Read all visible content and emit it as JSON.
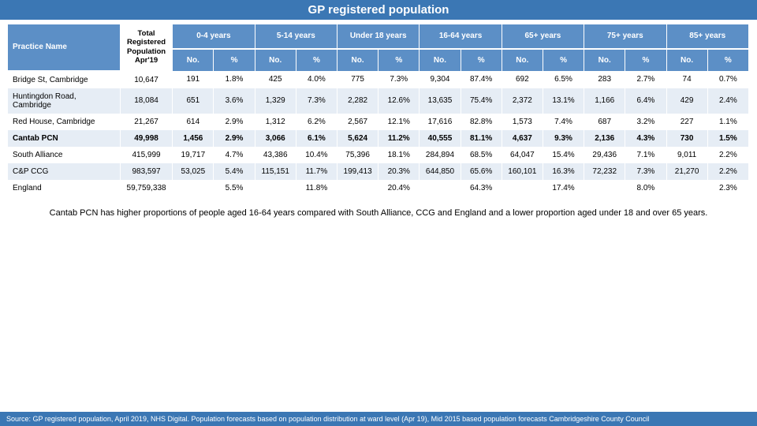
{
  "title": "GP registered population",
  "headers": {
    "practice": "Practice Name",
    "total": "Total Registered Population Apr'19",
    "groups": [
      "0-4 years",
      "5-14 years",
      "Under 18 years",
      "16-64 years",
      "65+ years",
      "75+ years",
      "85+ years"
    ],
    "no": "No.",
    "pct": "%"
  },
  "rows": [
    {
      "name": "Bridge St, Cambridge",
      "total": "10,647",
      "cells": [
        "191",
        "1.8%",
        "425",
        "4.0%",
        "775",
        "7.3%",
        "9,304",
        "87.4%",
        "692",
        "6.5%",
        "283",
        "2.7%",
        "74",
        "0.7%"
      ],
      "bold": false,
      "stripe": "odd"
    },
    {
      "name": "Huntingdon Road, Cambridge",
      "total": "18,084",
      "cells": [
        "651",
        "3.6%",
        "1,329",
        "7.3%",
        "2,282",
        "12.6%",
        "13,635",
        "75.4%",
        "2,372",
        "13.1%",
        "1,166",
        "6.4%",
        "429",
        "2.4%"
      ],
      "bold": false,
      "stripe": "even"
    },
    {
      "name": "Red House, Cambridge",
      "total": "21,267",
      "cells": [
        "614",
        "2.9%",
        "1,312",
        "6.2%",
        "2,567",
        "12.1%",
        "17,616",
        "82.8%",
        "1,573",
        "7.4%",
        "687",
        "3.2%",
        "227",
        "1.1%"
      ],
      "bold": false,
      "stripe": "odd"
    },
    {
      "name": "Cantab PCN",
      "total": "49,998",
      "cells": [
        "1,456",
        "2.9%",
        "3,066",
        "6.1%",
        "5,624",
        "11.2%",
        "40,555",
        "81.1%",
        "4,637",
        "9.3%",
        "2,136",
        "4.3%",
        "730",
        "1.5%"
      ],
      "bold": true,
      "stripe": "even"
    },
    {
      "name": "South Alliance",
      "total": "415,999",
      "cells": [
        "19,717",
        "4.7%",
        "43,386",
        "10.4%",
        "75,396",
        "18.1%",
        "284,894",
        "68.5%",
        "64,047",
        "15.4%",
        "29,436",
        "7.1%",
        "9,011",
        "2.2%"
      ],
      "bold": false,
      "stripe": "odd"
    },
    {
      "name": "C&P CCG",
      "total": "983,597",
      "cells": [
        "53,025",
        "5.4%",
        "115,151",
        "11.7%",
        "199,413",
        "20.3%",
        "644,850",
        "65.6%",
        "160,101",
        "16.3%",
        "72,232",
        "7.3%",
        "21,270",
        "2.2%"
      ],
      "bold": false,
      "stripe": "even"
    },
    {
      "name": "England",
      "total": "59,759,338",
      "cells": [
        "",
        "5.5%",
        "",
        "11.8%",
        "",
        "20.4%",
        "",
        "64.3%",
        "",
        "17.4%",
        "",
        "8.0%",
        "",
        "2.3%"
      ],
      "bold": false,
      "stripe": "odd"
    }
  ],
  "caption": "Cantab PCN has higher proportions of people aged 16-64 years compared with South Alliance, CCG and England and a lower proportion aged under 18 and over 65 years.",
  "source": "Source: GP registered population, April 2019, NHS Digital.  Population forecasts based on population distribution at ward level (Apr 19), Mid 2015 based population forecasts Cambridgeshire County Council",
  "colors": {
    "header_bg": "#5c8fc6",
    "title_bg": "#3b77b4",
    "stripe_even": "#e6edf5",
    "stripe_odd": "#ffffff",
    "text_white": "#ffffff",
    "text_black": "#000000"
  }
}
